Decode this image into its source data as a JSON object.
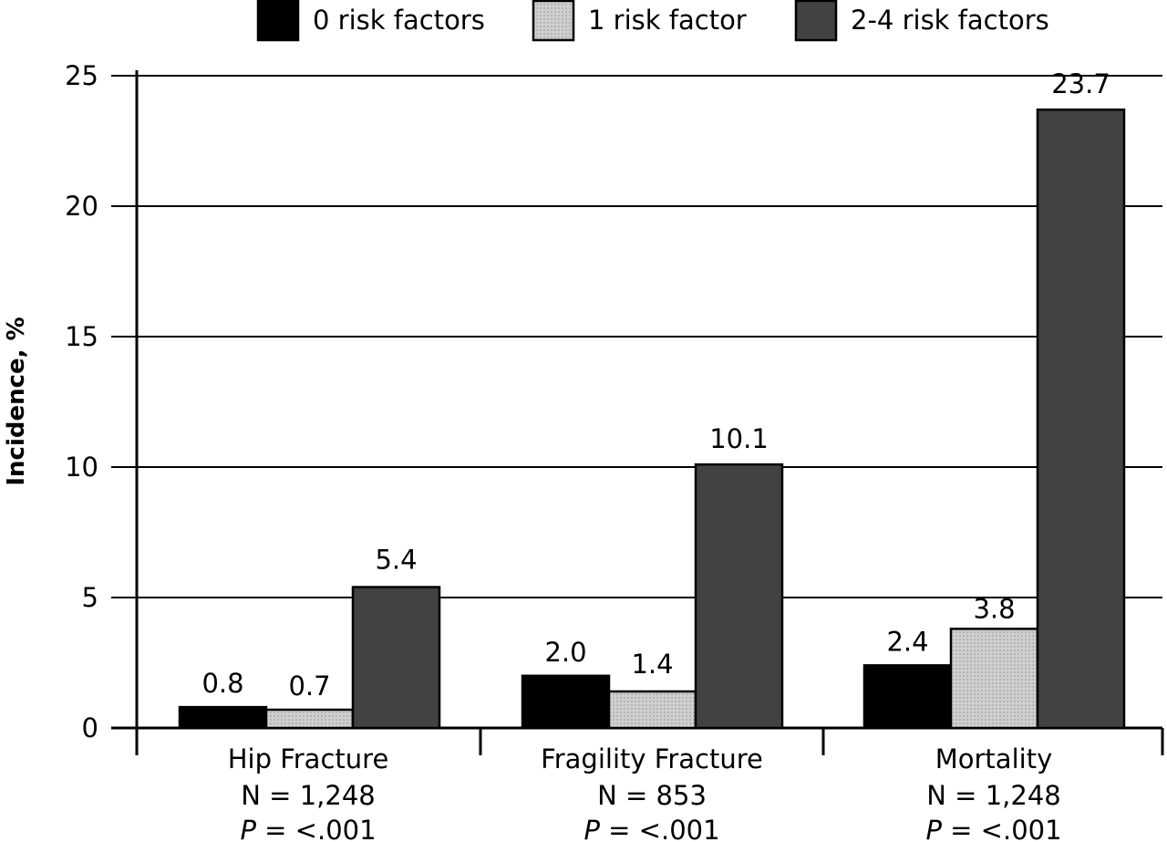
{
  "chart_data": {
    "type": "bar",
    "title": "",
    "xlabel": "",
    "ylabel": "Incidence, %",
    "ylim": [
      0,
      25
    ],
    "yticks": [
      "0",
      "5",
      "10",
      "15",
      "20",
      "25"
    ],
    "grid": "horizontal",
    "legend_position": "top",
    "categories": [
      "Hip Fracture",
      "Fragility Fracture",
      "Mortality"
    ],
    "category_n": [
      "N = 1,248",
      "N = 853",
      "N = 1,248"
    ],
    "category_p_prefix": "P",
    "category_p_value": [
      "= <.001",
      "= <.001",
      "= <.001"
    ],
    "series": [
      {
        "name": "0 risk factors",
        "color": "#000000",
        "values": [
          0.8,
          2.0,
          2.4
        ],
        "labels": [
          "0.8",
          "2.0",
          "2.4"
        ]
      },
      {
        "name": "1 risk factor",
        "color": "#c8c8c8",
        "values": [
          0.7,
          1.4,
          3.8
        ],
        "labels": [
          "0.7",
          "1.4",
          "3.8"
        ]
      },
      {
        "name": "2-4 risk factors",
        "color": "#424242",
        "values": [
          5.4,
          10.1,
          23.7
        ],
        "labels": [
          "5.4",
          "10.1",
          "23.7"
        ]
      }
    ]
  }
}
